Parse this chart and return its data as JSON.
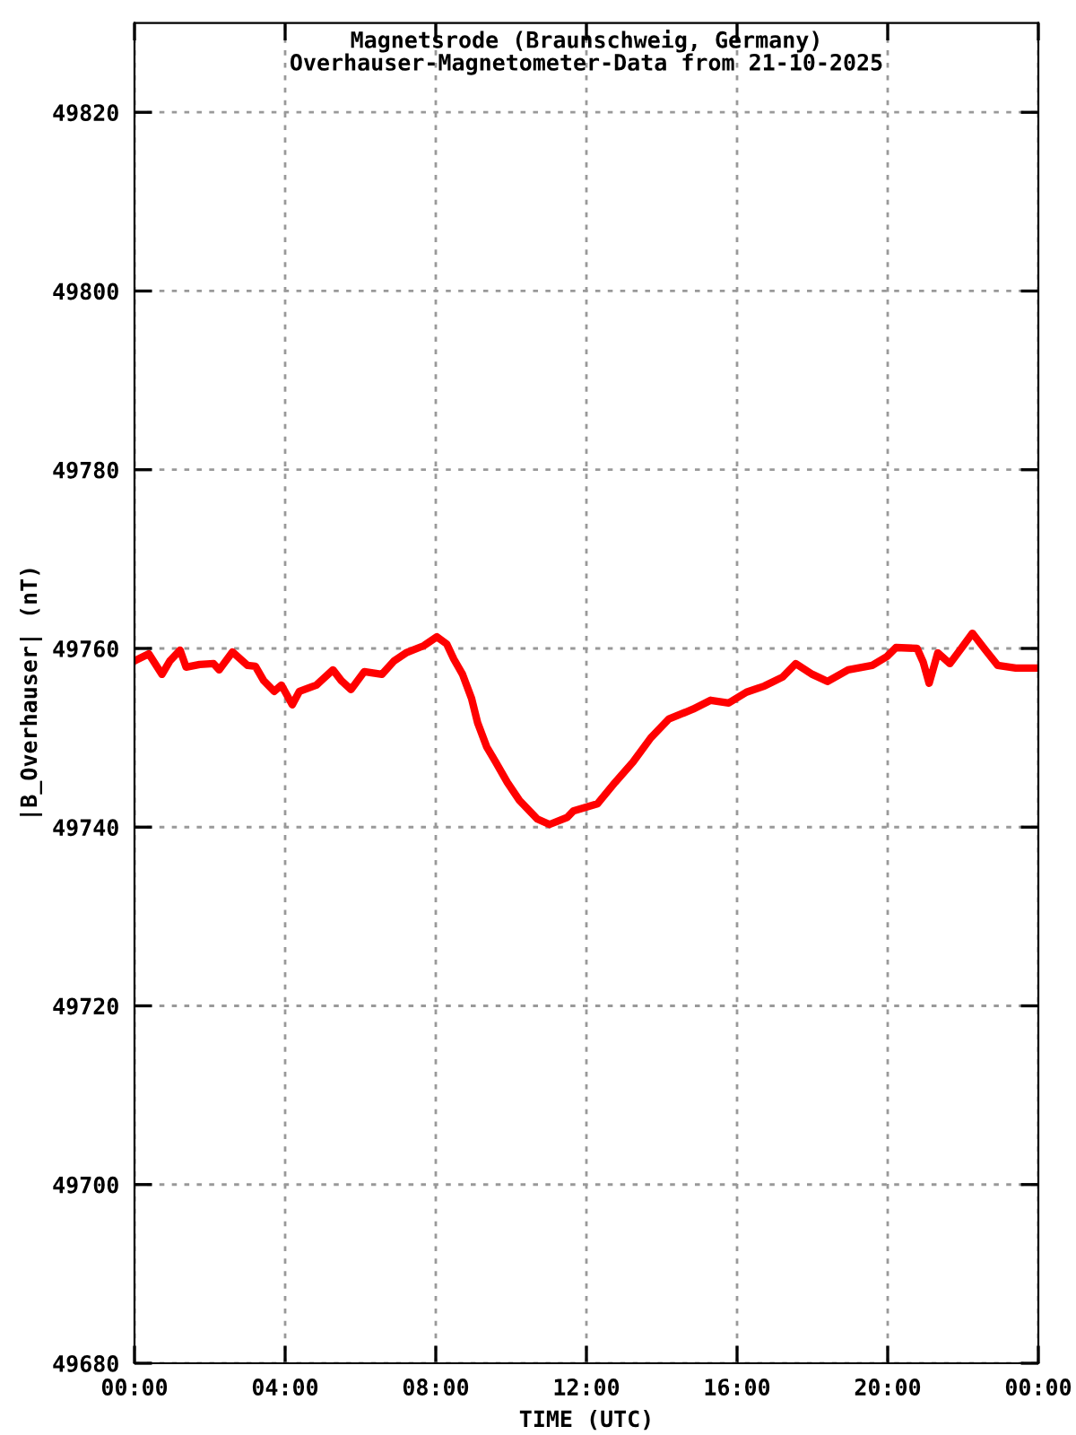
{
  "chart_data": {
    "type": "line",
    "title": "Magnetsrode (Braunschweig, Germany)",
    "subtitle": "Overhauser-Magnetometer-Data from 21-10-2025",
    "xlabel": "TIME (UTC)",
    "ylabel": "|B_Overhauser| (nT)",
    "xlim": [
      0,
      24
    ],
    "xticks": [
      {
        "value": 0,
        "label": "00:00"
      },
      {
        "value": 4,
        "label": "04:00"
      },
      {
        "value": 8,
        "label": "08:00"
      },
      {
        "value": 12,
        "label": "12:00"
      },
      {
        "value": 16,
        "label": "16:00"
      },
      {
        "value": 20,
        "label": "20:00"
      },
      {
        "value": 24,
        "label": "00:00"
      }
    ],
    "ylim": [
      49680,
      49830
    ],
    "yticks": [
      49680,
      49700,
      49720,
      49740,
      49760,
      49780,
      49800,
      49820
    ],
    "grid": true,
    "marker": "none",
    "line_style": "solid",
    "x": [
      0,
      0.38,
      0.73,
      0.94,
      1.21,
      1.37,
      1.73,
      2.1,
      2.25,
      2.6,
      3.0,
      3.21,
      3.43,
      3.71,
      3.9,
      4.19,
      4.38,
      4.83,
      5.27,
      5.49,
      5.75,
      6.1,
      6.57,
      6.89,
      7.21,
      7.68,
      8.03,
      8.29,
      8.48,
      8.71,
      8.95,
      9.11,
      9.35,
      9.59,
      9.9,
      10.22,
      10.7,
      11.02,
      11.49,
      11.65,
      12.29,
      12.76,
      13.24,
      13.71,
      14.19,
      14.83,
      15.3,
      15.78,
      16.25,
      16.73,
      17.21,
      17.56,
      18.0,
      18.4,
      18.95,
      19.59,
      19.98,
      20.22,
      20.78,
      20.94,
      21.1,
      21.33,
      21.65,
      21.97,
      22.25,
      22.6,
      22.92,
      23.4,
      24.0
    ],
    "series": [
      {
        "color": "#ff0000",
        "values": [
          49758.6,
          49759.4,
          49757.1,
          49758.6,
          49759.8,
          49757.9,
          49758.2,
          49758.3,
          49757.6,
          49759.6,
          49758.1,
          49758.0,
          49756.4,
          49755.2,
          49755.9,
          49753.7,
          49755.2,
          49755.9,
          49757.6,
          49756.4,
          49755.4,
          49757.4,
          49757.1,
          49758.6,
          49759.5,
          49760.3,
          49761.3,
          49760.5,
          49758.8,
          49757.1,
          49754.4,
          49751.7,
          49749.0,
          49747.3,
          49745.0,
          49743.0,
          49740.9,
          49740.3,
          49741.1,
          49741.8,
          49742.6,
          49745.0,
          49747.3,
          49750.0,
          49752.1,
          49753.2,
          49754.2,
          49753.9,
          49755.1,
          49755.8,
          49756.8,
          49758.3,
          49757.1,
          49756.3,
          49757.6,
          49758.1,
          49759.1,
          49760.1,
          49760.0,
          49758.5,
          49756.1,
          49759.5,
          49758.3,
          49760.1,
          49761.7,
          49759.8,
          49758.1,
          49757.8,
          49757.8
        ]
      }
    ]
  }
}
